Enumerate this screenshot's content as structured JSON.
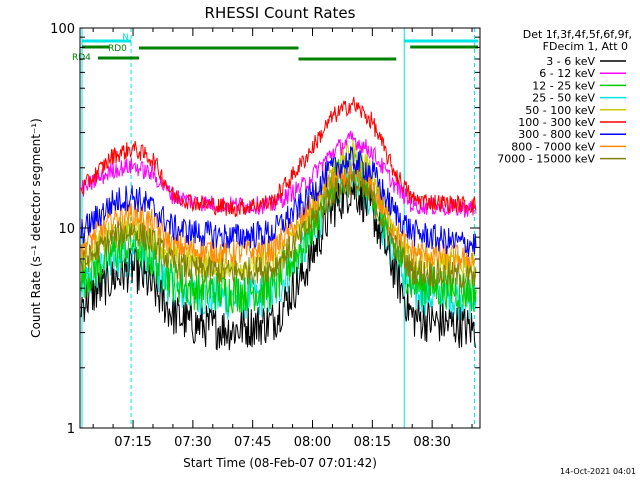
{
  "chart_data": {
    "type": "line",
    "title": "RHESSI Count Rates",
    "xlabel": "Start Time (08-Feb-07 07:01:42)",
    "ylabel": "Count Rate (s⁻¹ detector segment⁻¹)",
    "yscale": "log",
    "ylim": [
      1,
      100
    ],
    "xlim": [
      "07:01:42",
      "08:42:00"
    ],
    "x_ticks": [
      "07:15",
      "07:30",
      "07:45",
      "08:00",
      "08:15",
      "08:30"
    ],
    "y_ticks": [
      "1",
      "10",
      "100"
    ],
    "grid": false,
    "legend_header": [
      "Det 1f,3f,4f,5f,6f,9f,",
      "FDecim 1, Att 0"
    ],
    "legend_position": "right",
    "x_unit": "minutes after 07:00",
    "series": [
      {
        "name": "3 - 6 keV",
        "color": "#000000",
        "x": [
          2,
          10,
          15,
          20,
          25,
          30,
          40,
          50,
          58,
          65,
          70,
          75,
          80,
          85,
          90,
          95,
          101
        ],
        "values": [
          4.2,
          5.6,
          6.3,
          5.0,
          3.7,
          3.3,
          3.1,
          3.4,
          6.0,
          12.5,
          16.0,
          12.0,
          6.5,
          3.6,
          3.4,
          3.3,
          3.1
        ]
      },
      {
        "name": "6 - 12 keV",
        "color": "#ff00ff",
        "x": [
          2,
          10,
          15,
          20,
          25,
          30,
          40,
          50,
          58,
          65,
          70,
          75,
          80,
          85,
          90,
          95,
          101
        ],
        "values": [
          15.5,
          19.5,
          20.5,
          18.5,
          14.5,
          13.5,
          13.0,
          13.0,
          16.5,
          24,
          28,
          24,
          17,
          13.0,
          12.8,
          12.6,
          12.4
        ]
      },
      {
        "name": "12 - 25 keV",
        "color": "#00cc00",
        "x": [
          2,
          10,
          15,
          20,
          25,
          30,
          40,
          50,
          58,
          65,
          70,
          75,
          80,
          85,
          90,
          95,
          101
        ],
        "values": [
          5.5,
          7.5,
          8.5,
          7.0,
          5.5,
          5.0,
          4.8,
          5.0,
          8.5,
          17,
          21,
          16,
          8.5,
          5.3,
          5.1,
          5.0,
          4.8
        ]
      },
      {
        "name": "25 - 50 keV",
        "color": "#00e5e5",
        "x": [
          2,
          10,
          15,
          20,
          25,
          30,
          40,
          50,
          58,
          65,
          70,
          75,
          80,
          85,
          90,
          95,
          101
        ],
        "values": [
          5.0,
          6.8,
          7.5,
          6.3,
          5.0,
          4.6,
          4.4,
          4.6,
          7.8,
          15.5,
          19,
          14,
          7.5,
          4.8,
          4.6,
          4.5,
          4.3
        ]
      },
      {
        "name": "50 - 100 keV",
        "color": "#cccc00",
        "x": [
          2,
          10,
          15,
          20,
          25,
          30,
          40,
          50,
          58,
          65,
          70,
          75,
          80,
          85,
          90,
          95,
          101
        ],
        "values": [
          7.0,
          9.5,
          10.5,
          9.0,
          7.2,
          6.8,
          6.5,
          6.8,
          10.5,
          20,
          24,
          19,
          10,
          7.0,
          6.8,
          6.6,
          6.5
        ]
      },
      {
        "name": "100 - 300 keV",
        "color": "#ff0000",
        "x": [
          2,
          10,
          15,
          20,
          25,
          30,
          40,
          50,
          58,
          65,
          70,
          75,
          80,
          85,
          90,
          95,
          101
        ],
        "values": [
          15.5,
          23,
          25,
          22,
          14.5,
          13.5,
          12.5,
          13.5,
          22,
          36,
          42,
          34,
          20,
          14.0,
          13.5,
          13.2,
          13.0
        ]
      },
      {
        "name": "300 - 800 keV",
        "color": "#0000ff",
        "x": [
          2,
          10,
          15,
          20,
          25,
          30,
          40,
          50,
          58,
          65,
          70,
          75,
          80,
          85,
          90,
          95,
          101
        ],
        "values": [
          9.5,
          13.5,
          14.5,
          12.5,
          10.0,
          9.5,
          9.0,
          9.5,
          13.5,
          20,
          22,
          19,
          12.5,
          9.5,
          9.0,
          8.5,
          8.3
        ]
      },
      {
        "name": "800 - 7000 keV",
        "color": "#ff8800",
        "x": [
          2,
          10,
          15,
          20,
          25,
          30,
          40,
          50,
          58,
          65,
          70,
          75,
          80,
          85,
          90,
          95,
          101
        ],
        "values": [
          8.0,
          11.0,
          12.0,
          10.5,
          8.2,
          7.8,
          7.5,
          7.8,
          11.5,
          17,
          18.5,
          16,
          10.0,
          7.6,
          7.3,
          7.1,
          7.0
        ]
      },
      {
        "name": "7000 - 15000 keV",
        "color": "#808000",
        "x": [
          2,
          10,
          15,
          20,
          25,
          30,
          40,
          50,
          58,
          65,
          70,
          75,
          80,
          85,
          90,
          95,
          101
        ],
        "values": [
          6.5,
          9.0,
          9.8,
          8.5,
          6.6,
          6.2,
          6.0,
          6.3,
          9.5,
          15,
          17,
          14,
          8.5,
          6.1,
          5.9,
          5.8,
          5.6
        ]
      }
    ],
    "annotations": {
      "labels": [
        "N",
        "RD0",
        "RD4"
      ],
      "night_color": "#00e5e5",
      "bar_color": "#008000"
    }
  },
  "footer": {
    "timestamp": "14-Oct-2021 04:01"
  }
}
